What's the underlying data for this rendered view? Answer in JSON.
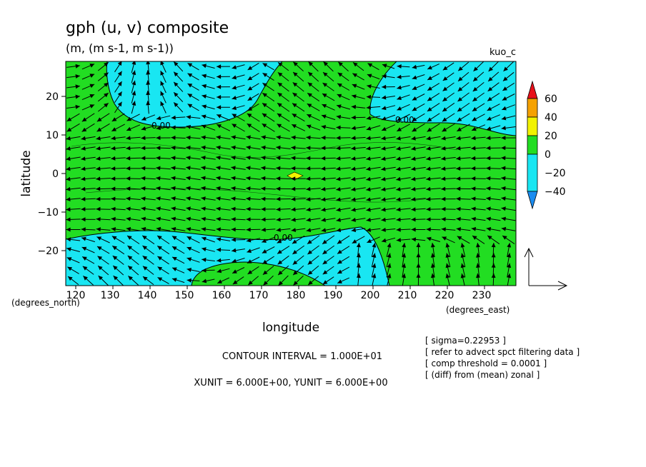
{
  "chart_data": {
    "type": "contour",
    "title": "gph (u, v) composite",
    "subtitle": "(m, (m s-1, m s-1))",
    "run_label": "kuo_c",
    "xlabel": "longitude",
    "ylabel": "latitude",
    "x_unit_label": "(degrees_east)",
    "y_unit_label": "(degrees_north)",
    "xlim": [
      118,
      239
    ],
    "ylim": [
      -29,
      29
    ],
    "x_ticks": [
      "120",
      "130",
      "140",
      "150",
      "160",
      "170",
      "180",
      "190",
      "200",
      "210",
      "220",
      "230"
    ],
    "y_ticks": [
      "20",
      "10",
      "0",
      "−10",
      "−20"
    ],
    "contour_interval": 10,
    "contour_label": "0.00",
    "colorbar": {
      "levels": [
        "60",
        "40",
        "20",
        "0",
        "−20",
        "−40"
      ],
      "colors": {
        "above_40": "#e8101a",
        "20_to_40": "#f5a100",
        "10_to_20": "#f2f200",
        "0_to_10": "#22dd22",
        "neg20_to_0": "#19e6f2",
        "below_neg20": "#1a8cf0"
      }
    },
    "info_lines": [
      "CONTOUR INTERVAL = 1.000E+01",
      "XUNIT = 6.000E+00, YUNIT = 6.000E+00"
    ],
    "notes": [
      "[ sigma=0.22953 ]",
      "[ refer to advect spct filtering data ]",
      "[ comp threshold = 0.0001 ]",
      "[ (diff) from (mean) zonal ]"
    ]
  }
}
